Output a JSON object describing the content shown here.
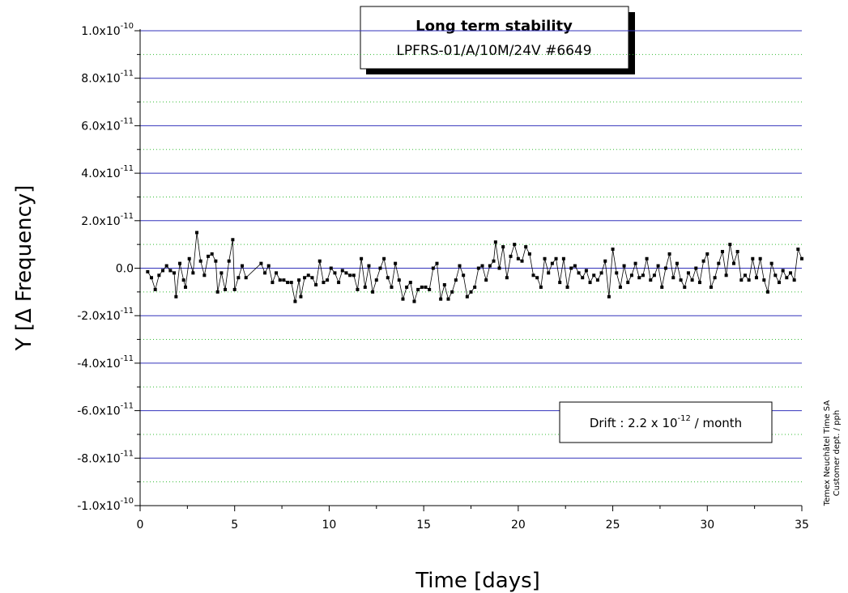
{
  "chart_data": {
    "type": "line",
    "title": "Long term stability",
    "subtitle": "LPFRS-01/A/10M/24V #6649",
    "x_label": "Time [days]",
    "y_label": "Y [Δ Frequency]",
    "drift_annotation": {
      "text": "Drift : 2.2 x 10",
      "exponent": "-12",
      "suffix": " / month"
    },
    "side_note": [
      "Temex Neuchâtel Time SA",
      "Customer dept. / pph"
    ],
    "xlim": [
      0,
      35
    ],
    "xticks": [
      0,
      5,
      10,
      15,
      20,
      25,
      30,
      35
    ],
    "xminor_ticks": [
      2.5,
      7.5,
      12.5,
      17.5,
      22.5,
      27.5,
      32.5
    ],
    "ylim": [
      -1e-10,
      1e-10
    ],
    "yticks": [
      {
        "value": -1e-10,
        "label": "-1.0x10",
        "exponent": "-10"
      },
      {
        "value": -8e-11,
        "label": "-8.0x10",
        "exponent": "-11"
      },
      {
        "value": -6e-11,
        "label": "-6.0x10",
        "exponent": "-11"
      },
      {
        "value": -4e-11,
        "label": "-4.0x10",
        "exponent": "-11"
      },
      {
        "value": -2e-11,
        "label": "-2.0x10",
        "exponent": "-11"
      },
      {
        "value": 0,
        "label": "0.0"
      },
      {
        "value": 2e-11,
        "label": "2.0x10",
        "exponent": "-11"
      },
      {
        "value": 4e-11,
        "label": "4.0x10",
        "exponent": "-11"
      },
      {
        "value": 6e-11,
        "label": "6.0x10",
        "exponent": "-11"
      },
      {
        "value": 8e-11,
        "label": "8.0x10",
        "exponent": "-11"
      },
      {
        "value": 1e-10,
        "label": "1.0x10",
        "exponent": "-10"
      }
    ],
    "yminor_ticks": [
      -9e-11,
      -7e-11,
      -5e-11,
      -3e-11,
      -1e-11,
      1e-11,
      3e-11,
      5e-11,
      7e-11,
      9e-11
    ],
    "grid": true,
    "grid_color": "#3333bb",
    "minor_grid_color": "#33bb33",
    "series": [
      {
        "name": "Y",
        "color": "#000000",
        "x": [
          0.4,
          0.6,
          0.8,
          1.0,
          1.2,
          1.4,
          1.6,
          1.8,
          1.9,
          2.1,
          2.3,
          2.4,
          2.6,
          2.8,
          3.0,
          3.2,
          3.4,
          3.6,
          3.8,
          4.0,
          4.1,
          4.3,
          4.5,
          4.7,
          4.9,
          5.0,
          5.2,
          5.4,
          5.6,
          6.4,
          6.6,
          6.8,
          7.0,
          7.2,
          7.4,
          7.6,
          7.8,
          8.0,
          8.2,
          8.4,
          8.5,
          8.7,
          8.9,
          9.1,
          9.3,
          9.5,
          9.7,
          9.9,
          10.1,
          10.3,
          10.5,
          10.7,
          10.9,
          11.1,
          11.3,
          11.5,
          11.7,
          11.9,
          12.1,
          12.3,
          12.5,
          12.7,
          12.9,
          13.1,
          13.3,
          13.5,
          13.7,
          13.9,
          14.1,
          14.3,
          14.5,
          14.7,
          14.9,
          15.1,
          15.3,
          15.5,
          15.7,
          15.9,
          16.1,
          16.3,
          16.5,
          16.7,
          16.9,
          17.1,
          17.3,
          17.5,
          17.7,
          17.9,
          18.1,
          18.3,
          18.5,
          18.7,
          18.8,
          19.0,
          19.2,
          19.4,
          19.6,
          19.8,
          20.0,
          20.2,
          20.4,
          20.6,
          20.8,
          21.0,
          21.2,
          21.4,
          21.6,
          21.8,
          22.0,
          22.2,
          22.4,
          22.6,
          22.8,
          23.0,
          23.2,
          23.4,
          23.6,
          23.8,
          24.0,
          24.2,
          24.4,
          24.6,
          24.8,
          25.0,
          25.2,
          25.4,
          25.6,
          25.8,
          26.0,
          26.2,
          26.4,
          26.6,
          26.8,
          27.0,
          27.2,
          27.4,
          27.6,
          27.8,
          28.0,
          28.2,
          28.4,
          28.6,
          28.8,
          29.0,
          29.2,
          29.4,
          29.6,
          29.8,
          30.0,
          30.2,
          30.4,
          30.6,
          30.8,
          31.0,
          31.2,
          31.4,
          31.6,
          31.8,
          32.0,
          32.2,
          32.4,
          32.6,
          32.8,
          33.0,
          33.2,
          33.4,
          33.6,
          33.8,
          34.0,
          34.2,
          34.4,
          34.6,
          34.8,
          35.0
        ],
        "values": [
          -1.5e-12,
          -4e-12,
          -9e-12,
          -3e-12,
          -1e-12,
          1e-12,
          -1e-12,
          -2e-12,
          -1.2e-11,
          2e-12,
          -5e-12,
          -8e-12,
          4e-12,
          -2e-12,
          1.5e-11,
          3e-12,
          -3e-12,
          5e-12,
          6e-12,
          3e-12,
          -1e-11,
          -2e-12,
          -9e-12,
          3e-12,
          1.2e-11,
          -9e-12,
          -4e-12,
          1e-12,
          -4e-12,
          2e-12,
          -2e-12,
          1e-12,
          -6e-12,
          -2e-12,
          -5e-12,
          -5e-12,
          -6e-12,
          -6e-12,
          -1.4e-11,
          -5e-12,
          -1.2e-11,
          -4e-12,
          -3e-12,
          -4e-12,
          -7e-12,
          3e-12,
          -6e-12,
          -5e-12,
          0,
          -2e-12,
          -6e-12,
          -1e-12,
          -2e-12,
          -3e-12,
          -3e-12,
          -9e-12,
          4e-12,
          -8e-12,
          1e-12,
          -1e-11,
          -5e-12,
          0,
          4e-12,
          -4e-12,
          -8e-12,
          2e-12,
          -5e-12,
          -1.3e-11,
          -8e-12,
          -6e-12,
          -1.4e-11,
          -9e-12,
          -8e-12,
          -8e-12,
          -9e-12,
          0,
          2e-12,
          -1.3e-11,
          -7e-12,
          -1.3e-11,
          -1e-11,
          -5e-12,
          1e-12,
          -3e-12,
          -1.2e-11,
          -1e-11,
          -8e-12,
          0,
          1e-12,
          -5e-12,
          1e-12,
          3e-12,
          1.1e-11,
          0,
          9e-12,
          -4e-12,
          5e-12,
          1e-11,
          4e-12,
          3e-12,
          9e-12,
          6e-12,
          -3e-12,
          -4e-12,
          -8e-12,
          4e-12,
          -2e-12,
          2e-12,
          4e-12,
          -6e-12,
          4e-12,
          -8e-12,
          0,
          1e-12,
          -2e-12,
          -4e-12,
          -1e-12,
          -6e-12,
          -3e-12,
          -5e-12,
          -2e-12,
          3e-12,
          -1.2e-11,
          8e-12,
          -2e-12,
          -8e-12,
          1e-12,
          -6e-12,
          -3e-12,
          2e-12,
          -4e-12,
          -3e-12,
          4e-12,
          -5e-12,
          -3e-12,
          1e-12,
          -8e-12,
          0,
          6e-12,
          -4e-12,
          2e-12,
          -5e-12,
          -8e-12,
          -2e-12,
          -5e-12,
          0,
          -6e-12,
          3e-12,
          6e-12,
          -8e-12,
          -4e-12,
          2e-12,
          7e-12,
          -3e-12,
          1e-11,
          2e-12,
          7e-12,
          -5e-12,
          -3e-12,
          -5e-12,
          4e-12,
          -4e-12,
          4e-12,
          -5e-12,
          -1e-11,
          2e-12,
          -3e-12,
          -6e-12,
          -1e-12,
          -4e-12,
          -2e-12,
          -5e-12,
          8e-12,
          4e-12
        ]
      }
    ]
  }
}
